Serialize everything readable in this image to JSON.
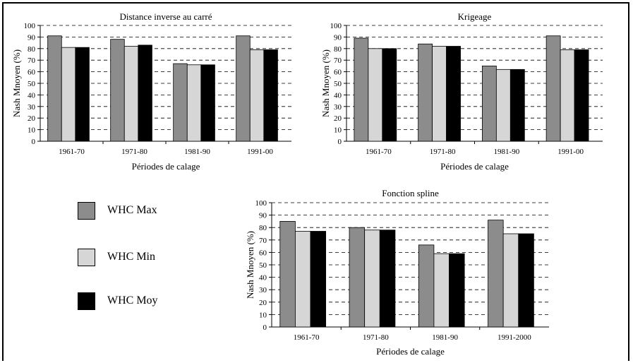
{
  "colors": {
    "WHC Max": "#8c8c8c",
    "WHC Min": "#d6d6d6",
    "WHC Moy": "#000000"
  },
  "legend": [
    {
      "label": "WHC Max",
      "color": "#8c8c8c"
    },
    {
      "label": "WHC Min",
      "color": "#d6d6d6"
    },
    {
      "label": "WHC Moy",
      "color": "#000000"
    }
  ],
  "chart_data": [
    {
      "type": "bar",
      "title": "Distance inverse au carré",
      "xlabel": "Périodes de calage",
      "ylabel": "Nash Mnoyen (%)",
      "ylim": [
        0,
        100
      ],
      "yticks": [
        0,
        10,
        20,
        30,
        40,
        50,
        60,
        70,
        80,
        90,
        100
      ],
      "grid": "horizontal dashed",
      "categories": [
        "1961-70",
        "1971-80",
        "1981-90",
        "1991-00"
      ],
      "series": [
        {
          "name": "WHC Max",
          "values": [
            91,
            88,
            67,
            91
          ]
        },
        {
          "name": "WHC Min",
          "values": [
            81,
            82,
            66,
            79
          ]
        },
        {
          "name": "WHC Moy",
          "values": [
            81,
            83,
            66,
            79
          ]
        }
      ]
    },
    {
      "type": "bar",
      "title": "Krigeage",
      "xlabel": "Périodes de calage",
      "ylabel": "Nash Mnoyen (%)",
      "ylim": [
        0,
        100
      ],
      "yticks": [
        0,
        10,
        20,
        30,
        40,
        50,
        60,
        70,
        80,
        90,
        100
      ],
      "grid": "horizontal dashed",
      "categories": [
        "1961-70",
        "1971-80",
        "1981-90",
        "1991-00"
      ],
      "series": [
        {
          "name": "WHC Max",
          "values": [
            89,
            84,
            65,
            91
          ]
        },
        {
          "name": "WHC Min",
          "values": [
            80,
            82,
            62,
            79
          ]
        },
        {
          "name": "WHC Moy",
          "values": [
            80,
            82,
            62,
            79
          ]
        }
      ]
    },
    {
      "type": "bar",
      "title": "Fonction spline",
      "xlabel": "Périodes de calage",
      "ylabel": "Nash Mnoyen (%)",
      "ylim": [
        0,
        100
      ],
      "yticks": [
        0,
        10,
        20,
        30,
        40,
        50,
        60,
        70,
        80,
        90,
        100
      ],
      "grid": "horizontal dashed",
      "categories": [
        "1961-70",
        "1971-80",
        "1981-90",
        "1991-2000"
      ],
      "series": [
        {
          "name": "WHC Max",
          "values": [
            85,
            80,
            66,
            86
          ]
        },
        {
          "name": "WHC Min",
          "values": [
            77,
            78,
            59,
            75
          ]
        },
        {
          "name": "WHC Moy",
          "values": [
            77,
            78,
            59,
            75
          ]
        }
      ]
    }
  ]
}
